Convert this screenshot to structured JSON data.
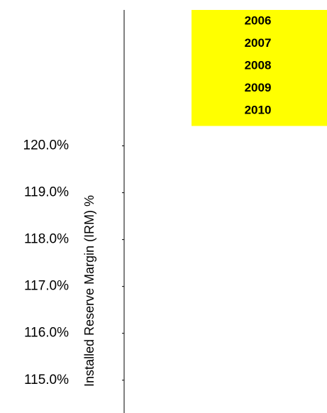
{
  "chart_data": {
    "type": "line",
    "y_label": "Installed Reserve Margin (IRM) %",
    "ylim": [
      114.3,
      122.9
    ],
    "yticks": [
      {
        "value": 120,
        "label": "120.0%"
      },
      {
        "value": 119,
        "label": "119.0%"
      },
      {
        "value": 118,
        "label": "118.0%"
      },
      {
        "value": 117,
        "label": "117.0%"
      },
      {
        "value": 116,
        "label": "116.0%"
      },
      {
        "value": 115,
        "label": "115.0%"
      }
    ],
    "legend_color": "#ffff00",
    "series": [
      {
        "name": "2006"
      },
      {
        "name": "2007"
      },
      {
        "name": "2008"
      },
      {
        "name": "2009"
      },
      {
        "name": "2010"
      }
    ]
  }
}
